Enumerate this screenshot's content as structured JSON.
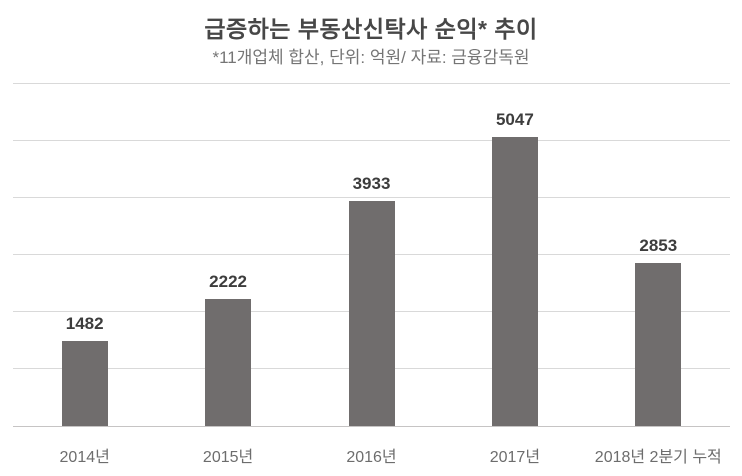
{
  "header": {
    "title": "급증하는 부동산신탁사 순익* 추이",
    "subtitle": "*11개업체 합산, 단위: 억원/ 자료: 금융감독원"
  },
  "chart_data": {
    "type": "bar",
    "title": "급증하는 부동산신탁사 순익* 추이",
    "subtitle": "*11개업체 합산, 단위: 억원/ 자료: 금융감독원",
    "categories": [
      "2014년",
      "2015년",
      "2016년",
      "2017년",
      "2018년 2분기 누적"
    ],
    "values": [
      1482,
      2222,
      3933,
      5047,
      2853
    ],
    "data_labels": [
      "1482",
      "2222",
      "3933",
      "5047",
      "2853"
    ],
    "xlabel": "",
    "ylabel": "",
    "ylim": [
      0,
      6000
    ],
    "gridline_step": 1000,
    "grid": true,
    "legend": false,
    "colors": {
      "bar": "#706d6d",
      "gridline": "#d9d9d9",
      "axis_line": "#c6c4c4",
      "title": "#474747",
      "subtitle": "#757575",
      "value_label": "#3d3d3d",
      "category_label": "#6d6d6d",
      "background": "#ffffff"
    }
  }
}
